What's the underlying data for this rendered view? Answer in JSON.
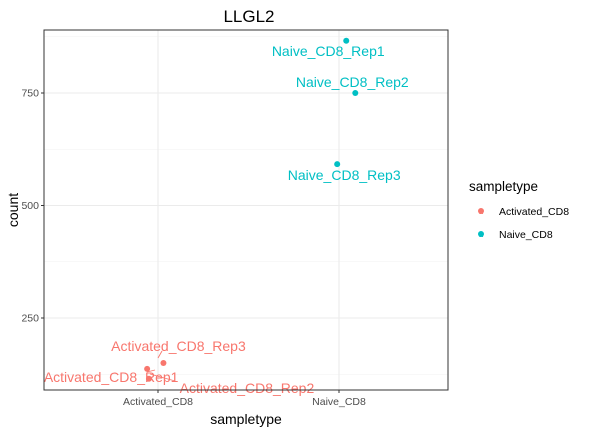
{
  "chart_data": {
    "type": "scatter",
    "title": "LLGL2",
    "xlabel": "sampletype",
    "ylabel": "count",
    "categories": [
      "Activated_CD8",
      "Naive_CD8"
    ],
    "ylim": [
      90,
      890
    ],
    "yticks": [
      250,
      500,
      750
    ],
    "grid": true,
    "legend": {
      "title": "sampletype",
      "position": "right",
      "entries": [
        {
          "name": "Activated_CD8",
          "color": "#F8766D"
        },
        {
          "name": "Naive_CD8",
          "color": "#00BFC4"
        }
      ]
    },
    "points": [
      {
        "label": "Naive_CD8_Rep1",
        "category": "Naive_CD8",
        "jitter": 0.04,
        "value": 866,
        "color": "#00BFC4"
      },
      {
        "label": "Naive_CD8_Rep2",
        "category": "Naive_CD8",
        "jitter": 0.09,
        "value": 750,
        "color": "#00BFC4"
      },
      {
        "label": "Naive_CD8_Rep3",
        "category": "Naive_CD8",
        "jitter": -0.01,
        "value": 592,
        "color": "#00BFC4"
      },
      {
        "label": "Activated_CD8_Rep3",
        "category": "Activated_CD8",
        "jitter": 0.03,
        "value": 150,
        "color": "#F8766D"
      },
      {
        "label": "Activated_CD8_Rep1",
        "category": "Activated_CD8",
        "jitter": -0.06,
        "value": 137,
        "color": "#F8766D"
      },
      {
        "label": "Activated_CD8_Rep2",
        "category": "Activated_CD8",
        "jitter": -0.05,
        "value": 115,
        "color": "#F8766D"
      }
    ]
  }
}
